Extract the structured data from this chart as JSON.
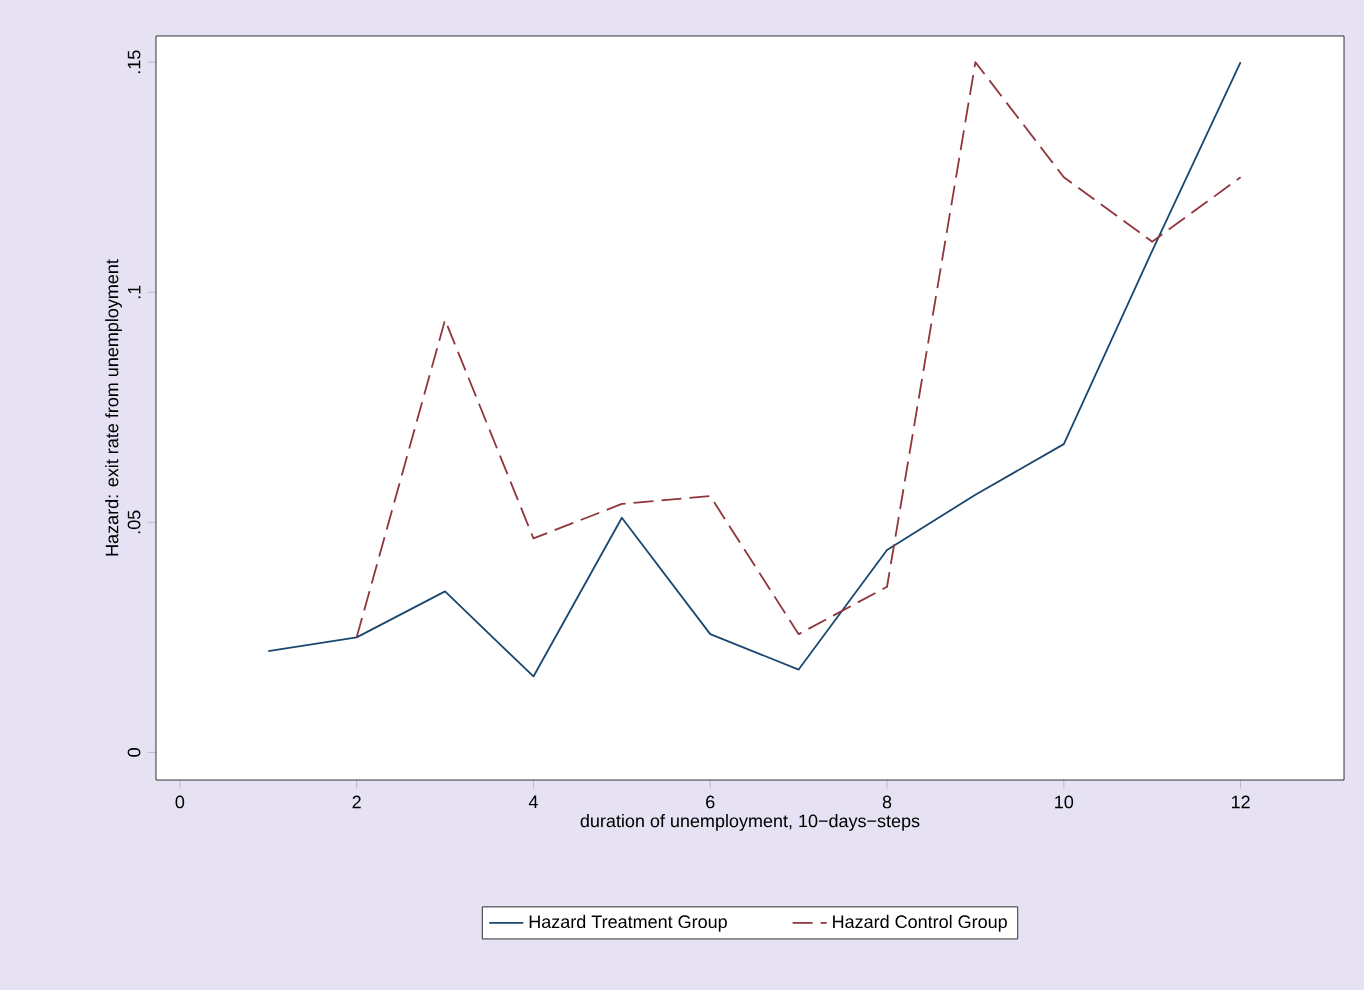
{
  "chart_data": {
    "type": "line",
    "xlabel": "duration of unemployment, 10−days−steps",
    "ylabel": "Hazard: exit rate from unemployment",
    "xlim": [
      -0.27,
      13.17
    ],
    "xticks": [
      0,
      2,
      4,
      6,
      8,
      10,
      12
    ],
    "ylim": [
      -0.006,
      0.1557
    ],
    "yticks": [
      0,
      {
        "value": 0.05,
        "label": ".05"
      },
      {
        "value": 0.1,
        "label": ".1"
      },
      {
        "value": 0.15,
        "label": ".15"
      }
    ],
    "legend": "bottom",
    "grid": false,
    "series": [
      {
        "name": "Hazard Treatment Group",
        "color": "#1a476f",
        "line_style": "solid",
        "x": [
          1,
          2,
          3,
          4,
          5,
          6,
          7,
          8,
          9,
          10,
          11,
          12
        ],
        "values": [
          0.022,
          0.025,
          0.035,
          0.0165,
          0.051,
          0.0257,
          0.018,
          0.044,
          0.056,
          0.067,
          0.109,
          0.15
        ]
      },
      {
        "name": "Hazard Control Group",
        "color": "#90353b",
        "line_style": "dashed",
        "x": [
          2,
          3,
          4,
          5,
          6,
          7,
          8,
          9,
          10,
          11,
          12
        ],
        "values": [
          0.025,
          0.094,
          0.0465,
          0.054,
          0.0557,
          0.0257,
          0.036,
          0.15,
          0.125,
          0.111,
          0.125
        ]
      }
    ]
  }
}
